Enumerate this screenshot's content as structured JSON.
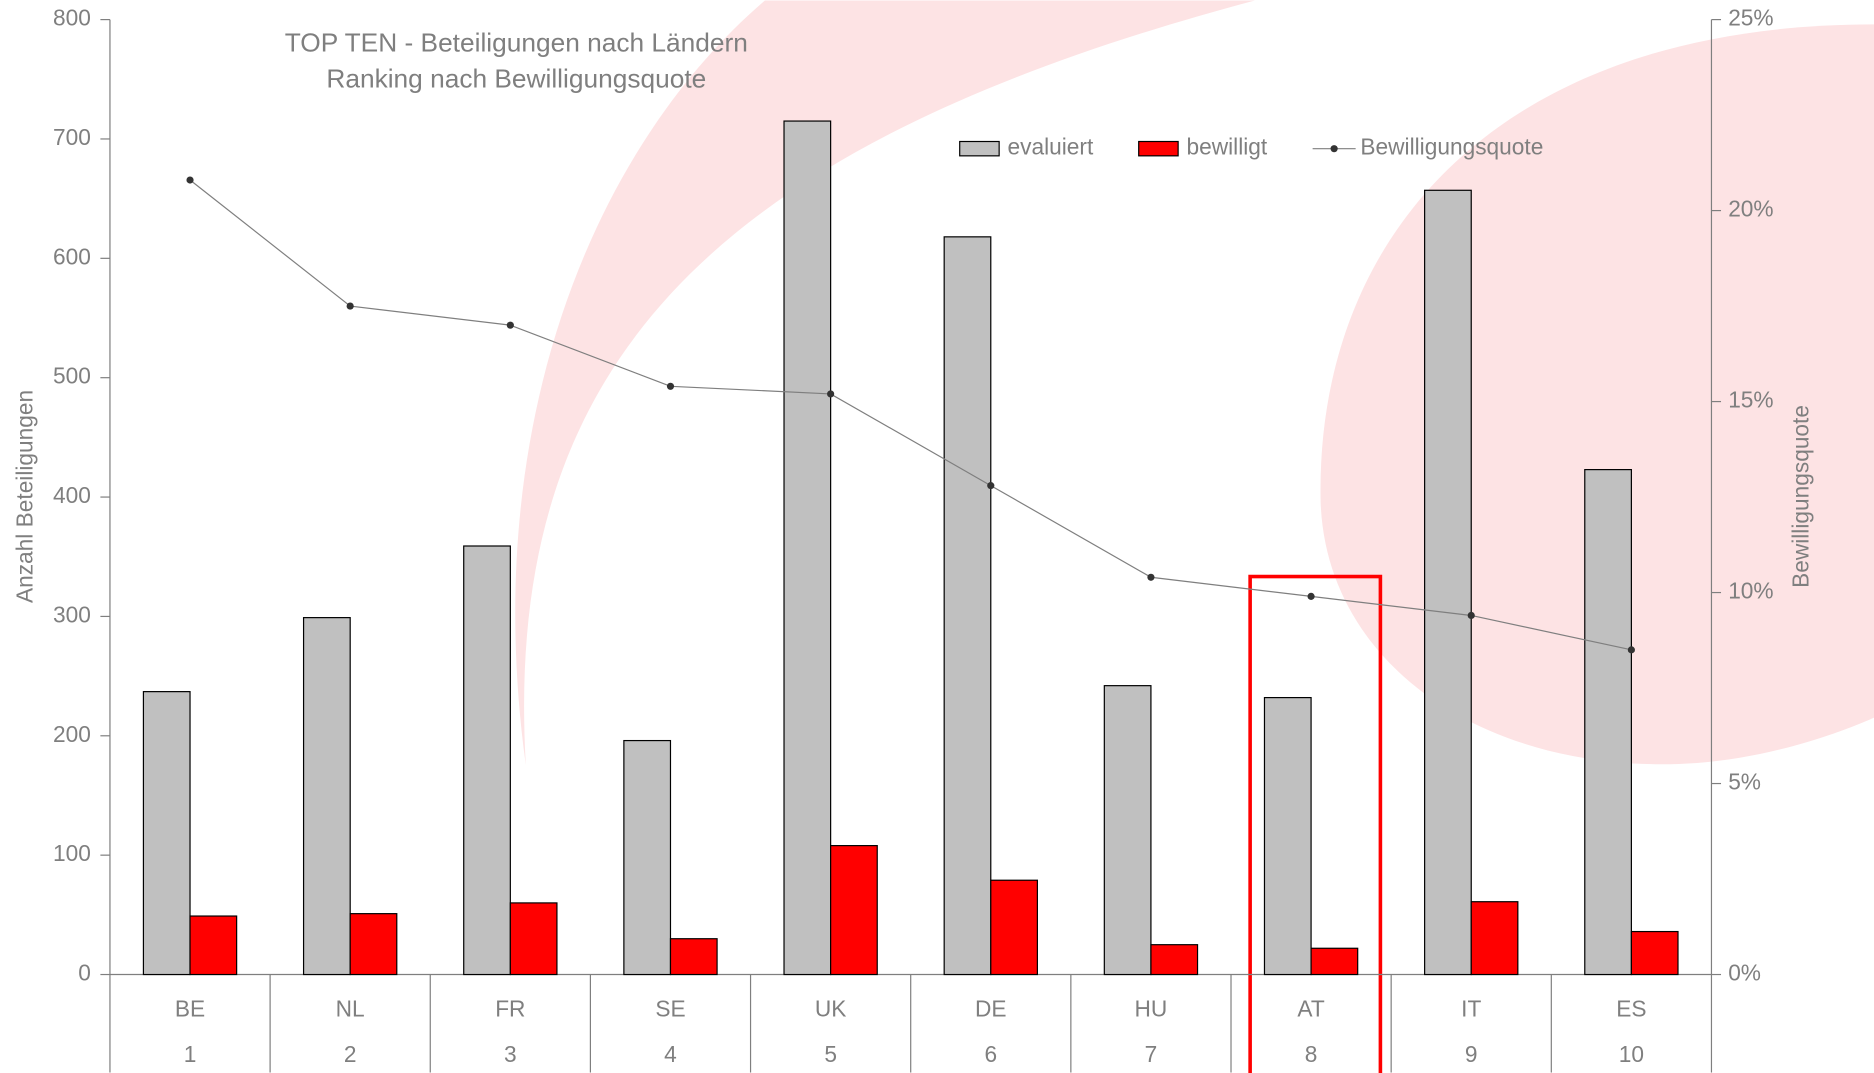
{
  "chart_data": {
    "type": "bar-line",
    "title": "TOP TEN - Beteiligungen nach Ländern",
    "subtitle": "Ranking nach Bewilligungsquote",
    "y_label": "Anzahl Beteiligungen",
    "y2_label": "Bewilligungsquote",
    "categories": [
      "BE",
      "NL",
      "FR",
      "SE",
      "UK",
      "DE",
      "HU",
      "AT",
      "IT",
      "ES"
    ],
    "ranks": [
      1,
      2,
      3,
      4,
      5,
      6,
      7,
      8,
      9,
      10
    ],
    "series": [
      {
        "name": "evaluiert",
        "type": "bar",
        "color": "#c0c0c0",
        "values": [
          237,
          299,
          359,
          196,
          715,
          618,
          242,
          232,
          657,
          423
        ]
      },
      {
        "name": "bewilligt",
        "type": "bar",
        "color": "#ff0000",
        "values": [
          49,
          51,
          60,
          30,
          108,
          79,
          25,
          22,
          61,
          36
        ]
      },
      {
        "name": "Bewilligungsquote",
        "type": "line",
        "axis": "y2",
        "color": "#7f7f7f",
        "values": [
          20.8,
          17.5,
          17.0,
          15.4,
          15.2,
          12.8,
          10.4,
          9.9,
          9.4,
          8.5
        ]
      }
    ],
    "ylim": [
      0,
      800
    ],
    "yticks": [
      0,
      100,
      200,
      300,
      400,
      500,
      600,
      700,
      800
    ],
    "y2lim": [
      0,
      25
    ],
    "y2ticks": [
      {
        "value": 0,
        "label": "0%"
      },
      {
        "value": 5,
        "label": "5%"
      },
      {
        "value": 10,
        "label": "10%"
      },
      {
        "value": 15,
        "label": "15%"
      },
      {
        "value": 20,
        "label": "20%"
      },
      {
        "value": 25,
        "label": "25%"
      }
    ]
  }
}
